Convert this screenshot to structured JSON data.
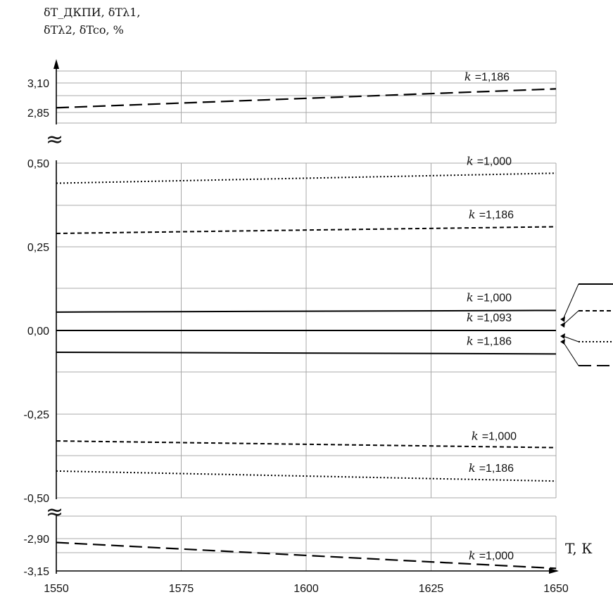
{
  "chart_data": {
    "type": "line",
    "ylabel_lines": [
      "δT_ДКПИ, δTλ1,",
      "δTλ2, δTco, %"
    ],
    "xlabel": "T, К",
    "x": [
      1550,
      1650
    ],
    "x_ticks": [
      "1550",
      "1575",
      "1600",
      "1625",
      "1650"
    ],
    "y_ticks": [
      "3,10",
      "2,85",
      "0,50",
      "0,25",
      "0,00",
      "-0,25",
      "-0,50",
      "-2,90",
      "-3,15"
    ],
    "axis_break_symbol": "≈",
    "grid": true,
    "series": [
      {
        "label": "k =1,186",
        "style": "long-dash",
        "y": [
          2.89,
          3.05
        ]
      },
      {
        "label": "k =1,000",
        "style": "dotted",
        "y": [
          0.44,
          0.47
        ]
      },
      {
        "label": "k =1,186",
        "style": "short-dash",
        "y": [
          0.29,
          0.31
        ]
      },
      {
        "label": "k =1,000",
        "style": "solid",
        "y": [
          0.055,
          0.06
        ]
      },
      {
        "label": "k =1,093",
        "style": "solid",
        "y": [
          0.0,
          0.0
        ]
      },
      {
        "label": "k =1,186",
        "style": "solid",
        "y": [
          -0.065,
          -0.07
        ]
      },
      {
        "label": "k =1,000",
        "style": "short-dash",
        "y": [
          -0.33,
          -0.35
        ]
      },
      {
        "label": "k =1,186",
        "style": "dotted",
        "y": [
          -0.42,
          -0.45
        ]
      },
      {
        "label": "k =1,000",
        "style": "long-dash",
        "y": [
          -2.93,
          -3.13
        ]
      }
    ],
    "legend_line_styles": [
      "solid",
      "short-dash",
      "dotted",
      "long-dash"
    ]
  }
}
